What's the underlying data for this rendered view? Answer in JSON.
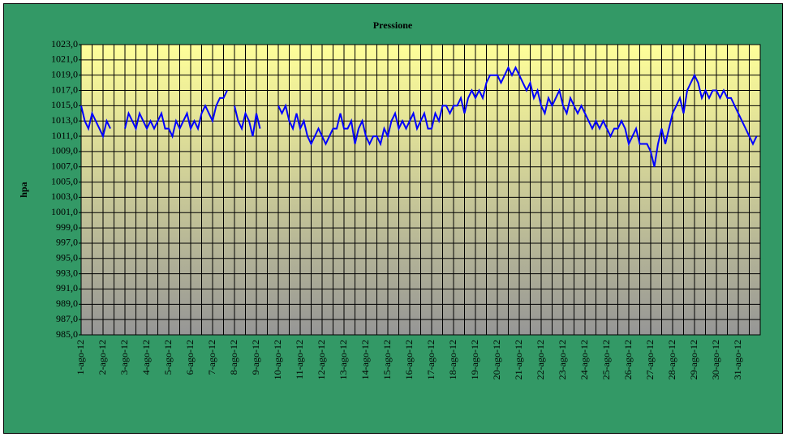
{
  "chart_data": {
    "type": "line",
    "title": "Pressione",
    "y_label": "hpa",
    "categories": [
      "1-ago-12",
      null,
      null,
      null,
      null,
      null,
      "2-ago-12",
      null,
      null,
      null,
      null,
      null,
      "3-ago-12",
      null,
      null,
      null,
      null,
      null,
      "4-ago-12",
      null,
      null,
      null,
      null,
      null,
      "5-ago-12",
      null,
      null,
      null,
      null,
      null,
      "6-ago-12",
      null,
      null,
      null,
      null,
      null,
      "7-ago-12",
      null,
      null,
      null,
      null,
      null,
      "8-ago-12",
      null,
      null,
      null,
      null,
      null,
      "9-ago-12",
      null,
      null,
      null,
      null,
      null,
      "10-ago-12",
      null,
      null,
      null,
      null,
      null,
      "11-ago-12",
      null,
      null,
      null,
      null,
      null,
      "12-ago-12",
      null,
      null,
      null,
      null,
      null,
      "13-ago-12",
      null,
      null,
      null,
      null,
      null,
      "14-ago-12",
      null,
      null,
      null,
      null,
      null,
      "15-ago-12",
      null,
      null,
      null,
      null,
      null,
      "16-ago-12",
      null,
      null,
      null,
      null,
      null,
      "17-ago-12",
      null,
      null,
      null,
      null,
      null,
      "18-ago-12",
      null,
      null,
      null,
      null,
      null,
      "19-ago-12",
      null,
      null,
      null,
      null,
      null,
      "20-ago-12",
      null,
      null,
      null,
      null,
      null,
      "21-ago-12",
      null,
      null,
      null,
      null,
      null,
      "22-ago-12",
      null,
      null,
      null,
      null,
      null,
      "23-ago-12",
      null,
      null,
      null,
      null,
      null,
      "24-ago-12",
      null,
      null,
      null,
      null,
      null,
      "25-ago-12",
      null,
      null,
      null,
      null,
      null,
      "26-ago-12",
      null,
      null,
      null,
      null,
      null,
      "27-ago-12",
      null,
      null,
      null,
      null,
      null,
      "28-ago-12",
      null,
      null,
      null,
      null,
      null,
      "29-ago-12",
      null,
      null,
      null,
      null,
      null,
      "30-ago-12",
      null,
      null,
      null,
      null,
      null,
      "31-ago-12",
      null,
      null,
      null,
      null,
      null
    ],
    "series": [
      {
        "color": "#0000ff",
        "values": [
          1015,
          1013,
          1012,
          1014,
          1013,
          1012,
          1011,
          1013,
          1012,
          null,
          null,
          null,
          1012,
          1014,
          1013,
          1012,
          1014,
          1013,
          1012,
          1013,
          1012,
          1013,
          1014,
          1012,
          1012,
          1011,
          1013,
          1012,
          1013,
          1014,
          1012,
          1013,
          1012,
          1014,
          1015,
          1014,
          1013,
          1015,
          1016,
          1016,
          1017,
          null,
          1015,
          1013,
          1012,
          1014,
          1013,
          1011,
          1014,
          1012,
          null,
          null,
          null,
          null,
          1015,
          1014,
          1015,
          1013,
          1012,
          1014,
          1012,
          1013,
          1011,
          1010,
          1011,
          1012,
          1011,
          1010,
          1011,
          1012,
          1012,
          1014,
          1012,
          1012,
          1013,
          1010,
          1012,
          1013,
          1011,
          1010,
          1011,
          1011,
          1010,
          1012,
          1011,
          1013,
          1014,
          1012,
          1013,
          1012,
          1013,
          1014,
          1012,
          1013,
          1014,
          1012,
          1012,
          1014,
          1013,
          1015,
          1015,
          1014,
          1015,
          1015,
          1016,
          1014,
          1016,
          1017,
          1016,
          1017,
          1016,
          1018,
          1019,
          1019,
          1019,
          1018,
          1019,
          1020,
          1019,
          1020,
          1019,
          1018,
          1017,
          1018,
          1016,
          1017,
          1015,
          1014,
          1016,
          1015,
          1016,
          1017,
          1015,
          1014,
          1016,
          1015,
          1014,
          1015,
          1014,
          1013,
          1012,
          1013,
          1012,
          1013,
          1012,
          1011,
          1012,
          1012,
          1013,
          1012,
          1010,
          1011,
          1012,
          1010,
          1010,
          1010,
          1009,
          1007,
          1010,
          1012,
          1010,
          1012,
          1014,
          1015,
          1016,
          1014,
          1017,
          1018,
          1019,
          1018,
          1016,
          1017,
          1016,
          1017,
          1017,
          1016,
          1017,
          1016,
          1016,
          1015,
          1014,
          1013,
          1012,
          1011,
          1010,
          1011
        ]
      }
    ],
    "ylim": [
      985,
      1023
    ],
    "yticks": [
      {
        "value": 985,
        "label": "985,0"
      },
      {
        "value": 987,
        "label": "987,0"
      },
      {
        "value": 989,
        "label": "989,0"
      },
      {
        "value": 991,
        "label": "991,0"
      },
      {
        "value": 993,
        "label": "993,0"
      },
      {
        "value": 995,
        "label": "995,0"
      },
      {
        "value": 997,
        "label": "997,0"
      },
      {
        "value": 999,
        "label": "999,0"
      },
      {
        "value": 1001,
        "label": "1001,0"
      },
      {
        "value": 1003,
        "label": "1003,0"
      },
      {
        "value": 1005,
        "label": "1005,0"
      },
      {
        "value": 1007,
        "label": "1007,0"
      },
      {
        "value": 1009,
        "label": "1009,0"
      },
      {
        "value": 1011,
        "label": "1011,0"
      },
      {
        "value": 1013,
        "label": "1013,0"
      },
      {
        "value": 1015,
        "label": "1015,0"
      },
      {
        "value": 1017,
        "label": "1017,0"
      },
      {
        "value": 1019,
        "label": "1019,0"
      },
      {
        "value": 1021,
        "label": "1021,0"
      },
      {
        "value": 1023,
        "label": "1023,0"
      }
    ],
    "grid": true
  }
}
